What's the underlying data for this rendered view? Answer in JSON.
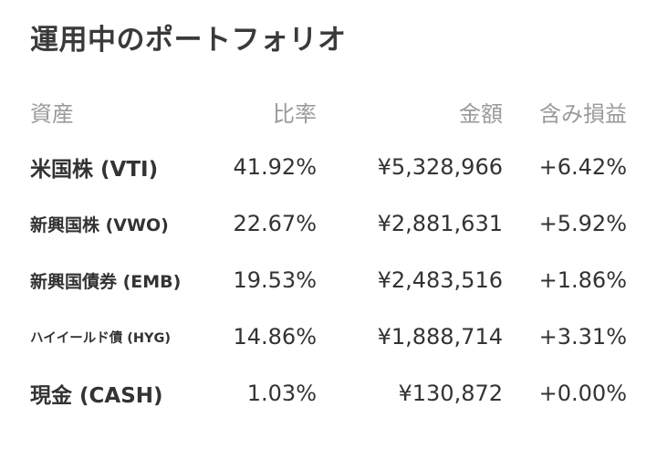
{
  "title": "運用中のポートフォリオ",
  "columns": {
    "asset": "資産",
    "ratio": "比率",
    "amount": "金額",
    "pnl": "含み損益"
  },
  "colors": {
    "positive": "#2dbb72",
    "header_text": "#9a9a9a",
    "body_text": "#333333"
  },
  "rows": [
    {
      "name": "米国株 (VTI)",
      "ratio": "41.92%",
      "amount": "¥5,328,966",
      "pnl": "+6.42%"
    },
    {
      "name": "新興国株 (VWO)",
      "ratio": "22.67%",
      "amount": "¥2,881,631",
      "pnl": "+5.92%"
    },
    {
      "name": "新興国債券 (EMB)",
      "ratio": "19.53%",
      "amount": "¥2,483,516",
      "pnl": "+1.86%"
    },
    {
      "name": "ハイイールド債 (HYG)",
      "ratio": "14.86%",
      "amount": "¥1,888,714",
      "pnl": "+3.31%"
    },
    {
      "name": "現金 (CASH)",
      "ratio": "1.03%",
      "amount": "¥130,872",
      "pnl": "+0.00%"
    }
  ]
}
